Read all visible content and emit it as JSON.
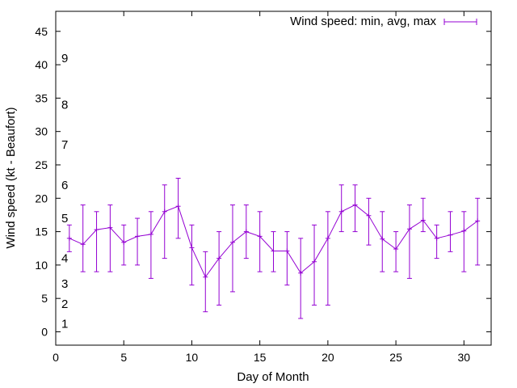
{
  "chart_data": {
    "type": "line",
    "title": "",
    "xlabel": "Day of Month",
    "ylabel": "Wind speed (kt - Beaufort)",
    "xlim": [
      0,
      32
    ],
    "ylim": [
      -2,
      48
    ],
    "x_ticks": [
      0,
      5,
      10,
      15,
      20,
      25,
      30
    ],
    "y_ticks": [
      0,
      5,
      10,
      15,
      20,
      25,
      30,
      35,
      40,
      45
    ],
    "grid": false,
    "legend": {
      "position": "top-right",
      "entries": [
        "Wind speed: min, avg, max"
      ]
    },
    "series": [
      {
        "name": "Wind speed: min, avg, max",
        "color": "#9400d3",
        "marker": "plus",
        "error_bars": true,
        "x": [
          1,
          2,
          3,
          4,
          5,
          6,
          7,
          8,
          9,
          10,
          11,
          12,
          13,
          14,
          15,
          16,
          17,
          18,
          19,
          20,
          21,
          22,
          23,
          24,
          25,
          26,
          27,
          28,
          29,
          30,
          31
        ],
        "avg": [
          14,
          13.1,
          15.3,
          15.6,
          13.4,
          14.3,
          14.6,
          18,
          18.8,
          12.6,
          8.2,
          11,
          13.4,
          15,
          14.3,
          12.1,
          12.1,
          8.8,
          10.5,
          14,
          18,
          19,
          17.4,
          13.9,
          12.4,
          15.4,
          16.7,
          14,
          14.5,
          15.1,
          16.6
        ],
        "min": [
          12,
          9,
          9,
          9,
          10,
          10,
          8,
          11,
          14,
          7,
          3,
          4,
          6,
          11,
          9,
          9,
          7,
          2,
          4,
          4,
          15,
          15,
          13,
          9,
          9,
          8,
          15,
          11,
          12,
          9,
          10
        ],
        "max": [
          16,
          19,
          18,
          19,
          16,
          17,
          18,
          22,
          23,
          16,
          12,
          15,
          19,
          19,
          18,
          15,
          15,
          14,
          16,
          18,
          22,
          22,
          20,
          18,
          15,
          19,
          20,
          16,
          18,
          18,
          20
        ]
      }
    ],
    "annotations": [
      {
        "text": "1",
        "y": 1.2
      },
      {
        "text": "2",
        "y": 4.2
      },
      {
        "text": "3",
        "y": 7.2
      },
      {
        "text": "4",
        "y": 11.0
      },
      {
        "text": "5",
        "y": 17.0
      },
      {
        "text": "6",
        "y": 22.0
      },
      {
        "text": "7",
        "y": 28.0
      },
      {
        "text": "8",
        "y": 34.0
      },
      {
        "text": "9",
        "y": 41.0
      }
    ]
  }
}
